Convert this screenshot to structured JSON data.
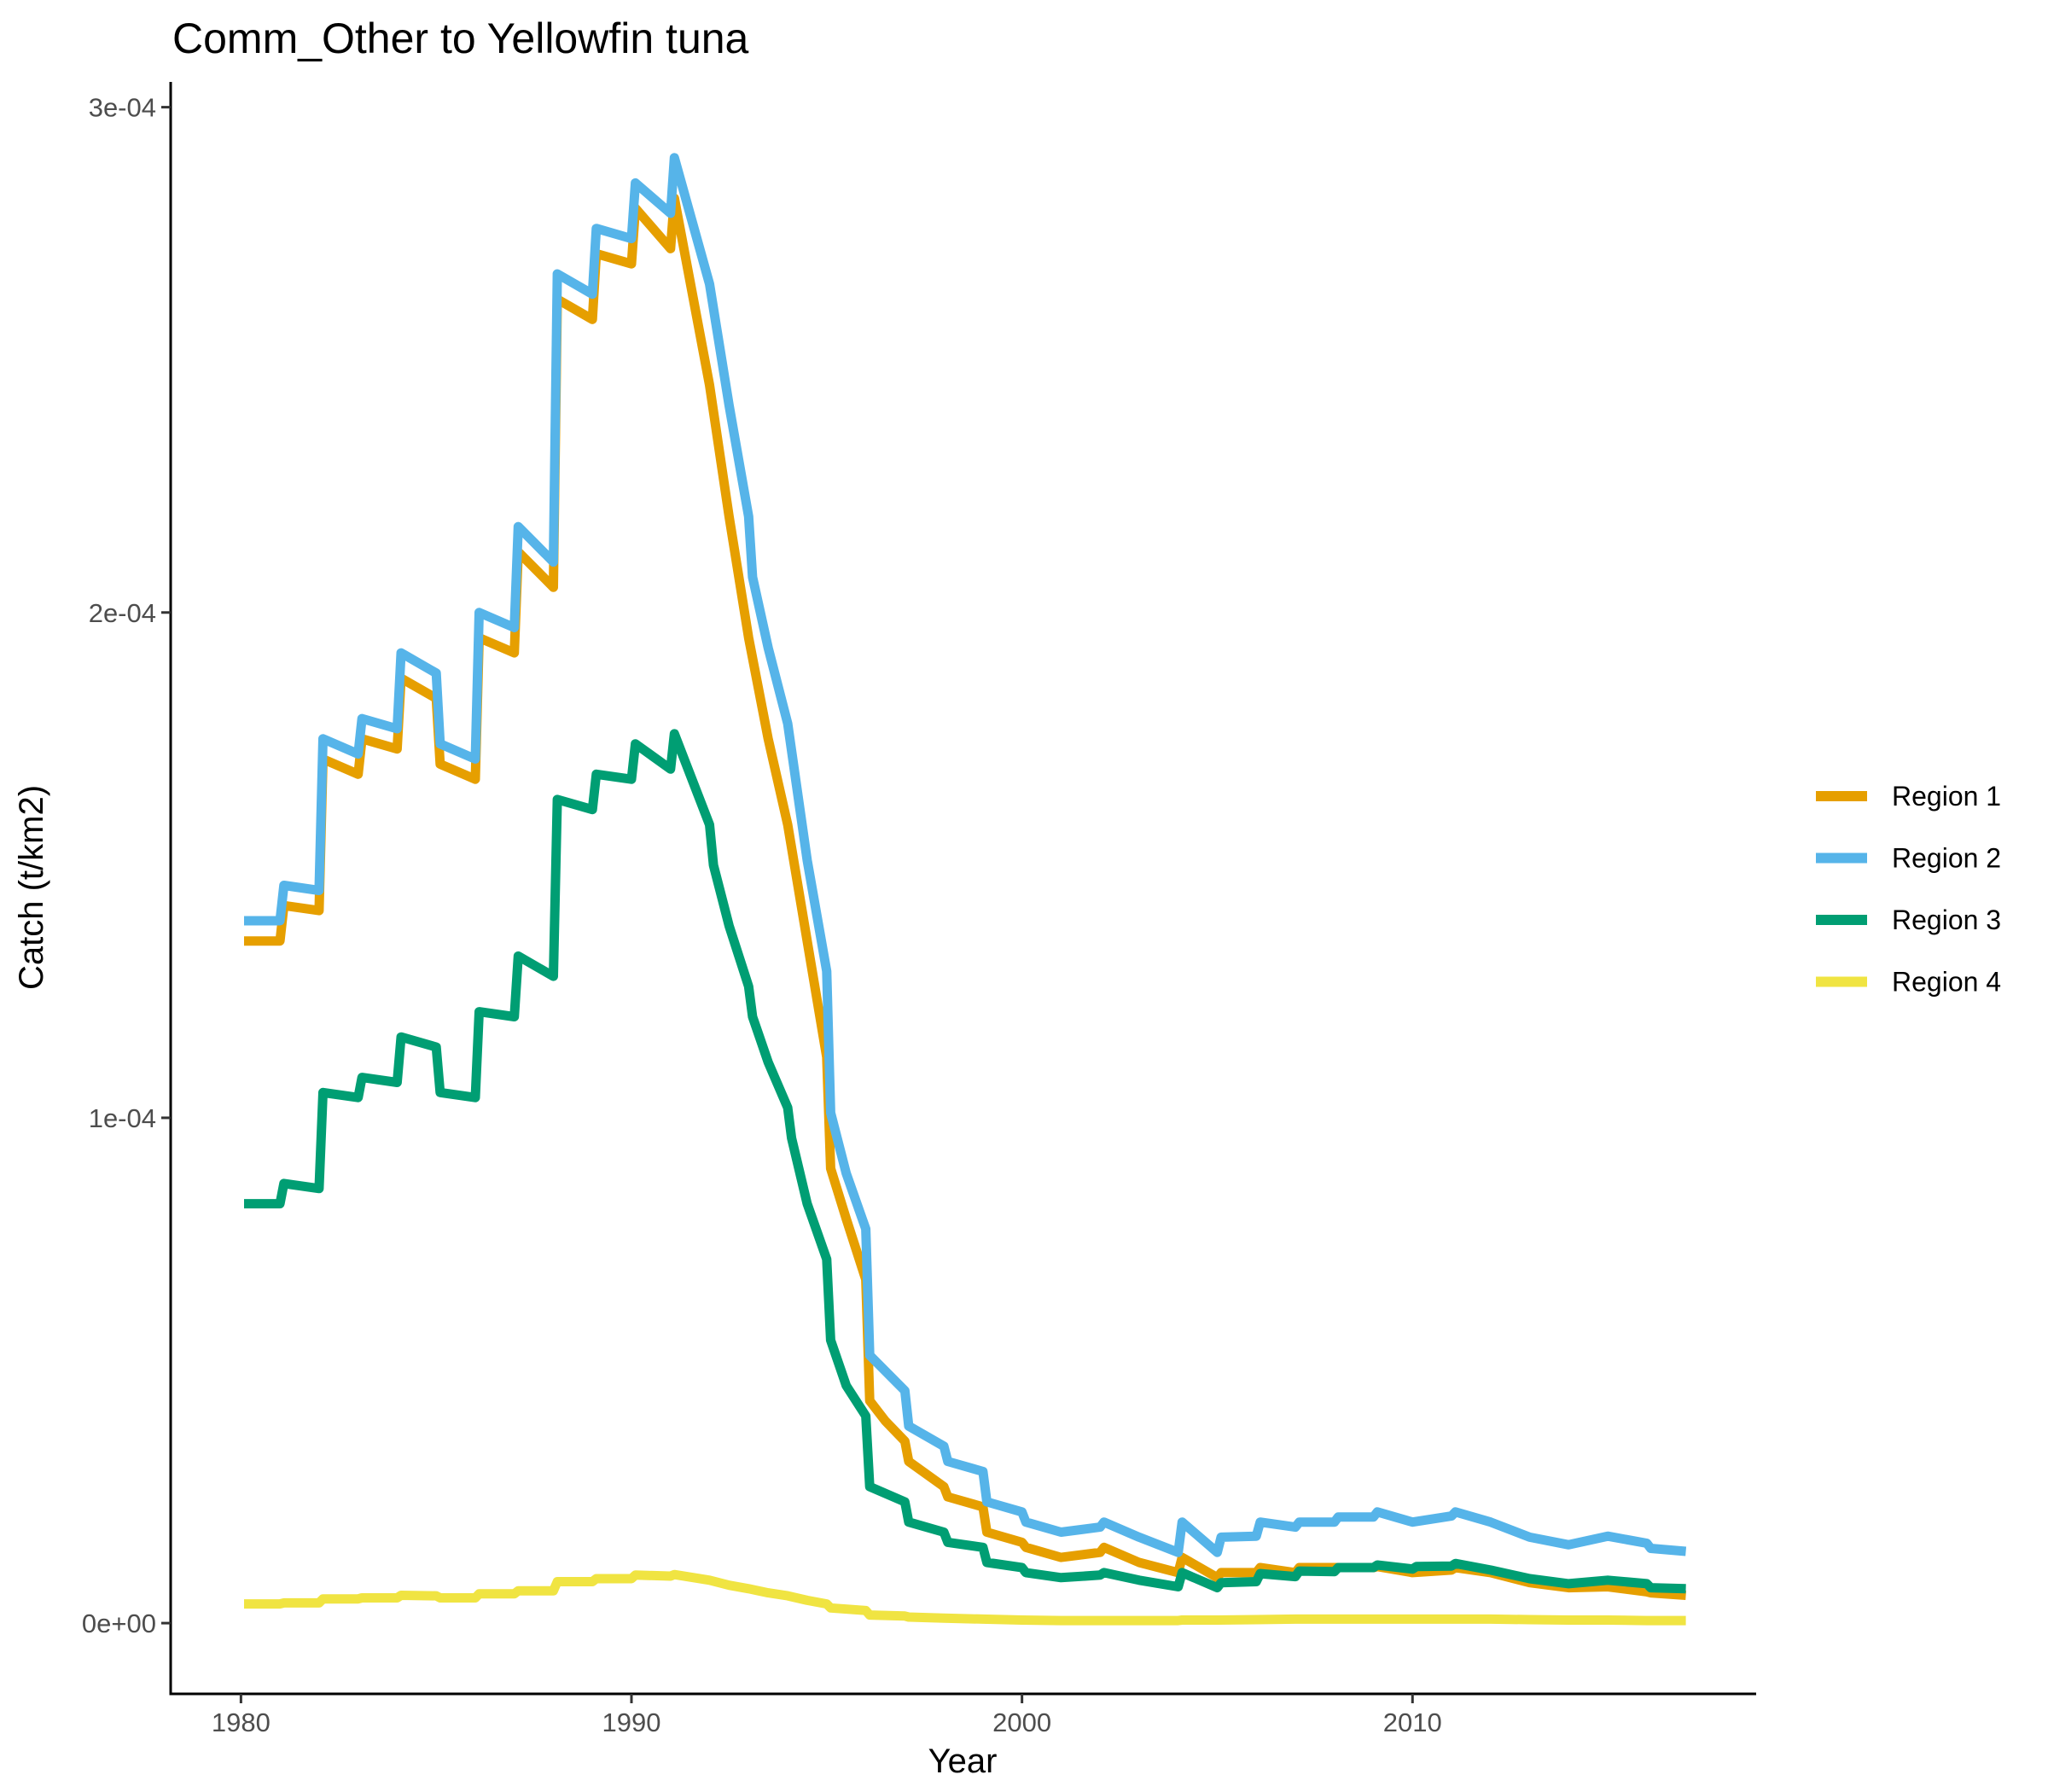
{
  "chart_data": {
    "type": "line",
    "title": "Comm_Other to Yellowfin tuna",
    "xlabel": "Year",
    "ylabel": "Catch (t/km2)",
    "xlim": [
      1978.2,
      2018.8
    ],
    "ylim": [
      -1.4e-05,
      0.000305
    ],
    "x_ticks": [
      {
        "value": 1980,
        "label": "1980"
      },
      {
        "value": 1990,
        "label": "1990"
      },
      {
        "value": 2000,
        "label": "2000"
      },
      {
        "value": 2010,
        "label": "2010"
      }
    ],
    "y_ticks": [
      {
        "value": 0,
        "label": "0e+00"
      },
      {
        "value": 0.0001,
        "label": "1e-04"
      },
      {
        "value": 0.0002,
        "label": "2e-04"
      },
      {
        "value": 0.0003,
        "label": "3e-04"
      }
    ],
    "grid": false,
    "legend_position": "right",
    "series": [
      {
        "name": "Region 1",
        "color": "#E69F00",
        "points": [
          [
            1980.08,
            0.000135
          ],
          [
            1981,
            0.000135
          ],
          [
            1981.1,
            0.000142
          ],
          [
            1982,
            0.000141
          ],
          [
            1982.1,
            0.000171
          ],
          [
            1983,
            0.000168
          ],
          [
            1983.1,
            0.000175
          ],
          [
            1984,
            0.000173
          ],
          [
            1984.1,
            0.000187
          ],
          [
            1985,
            0.000183
          ],
          [
            1985.1,
            0.00017
          ],
          [
            1986,
            0.000167
          ],
          [
            1986.1,
            0.000195
          ],
          [
            1987,
            0.000192
          ],
          [
            1987.1,
            0.000212
          ],
          [
            1988,
            0.000205
          ],
          [
            1988.1,
            0.000262
          ],
          [
            1989,
            0.000258
          ],
          [
            1989.1,
            0.000271
          ],
          [
            1990,
            0.000269
          ],
          [
            1990.1,
            0.00028
          ],
          [
            1991,
            0.000272
          ],
          [
            1991.1,
            0.000282
          ],
          [
            1992,
            0.000245
          ],
          [
            1992.5,
            0.000219
          ],
          [
            1993,
            0.000195
          ],
          [
            1993.5,
            0.000175
          ],
          [
            1994,
            0.000158
          ],
          [
            1994.5,
            0.000135
          ],
          [
            1995,
            0.000112
          ],
          [
            1995.1,
            9e-05
          ],
          [
            1995.5,
            8e-05
          ],
          [
            1996,
            6.8e-05
          ],
          [
            1996.1,
            4.4e-05
          ],
          [
            1996.5,
            4e-05
          ],
          [
            1997,
            3.6e-05
          ],
          [
            1997.1,
            3.2e-05
          ],
          [
            1998,
            2.7e-05
          ],
          [
            1998.1,
            2.5e-05
          ],
          [
            1999,
            2.3e-05
          ],
          [
            1999.1,
            1.8e-05
          ],
          [
            2000,
            1.6e-05
          ],
          [
            2000.1,
            1.5e-05
          ],
          [
            2001,
            1.3e-05
          ],
          [
            2002,
            1.4e-05
          ],
          [
            2002.1,
            1.5e-05
          ],
          [
            2003,
            1.2e-05
          ],
          [
            2004,
            1e-05
          ],
          [
            2004.1,
            1.3e-05
          ],
          [
            2005,
            9e-06
          ],
          [
            2005.1,
            1e-05
          ],
          [
            2006,
            1e-05
          ],
          [
            2006.1,
            1.1e-05
          ],
          [
            2007,
            1e-05
          ],
          [
            2007.1,
            1.1e-05
          ],
          [
            2008,
            1.1e-05
          ],
          [
            2009,
            1.1e-05
          ],
          [
            2009.1,
            1.12e-05
          ],
          [
            2010,
            1e-05
          ],
          [
            2011,
            1.05e-05
          ],
          [
            2011.1,
            1.1e-05
          ],
          [
            2012,
            1e-05
          ],
          [
            2013,
            8e-06
          ],
          [
            2014,
            7e-06
          ],
          [
            2015,
            7.2e-06
          ],
          [
            2016,
            6.2e-06
          ],
          [
            2016.1,
            6e-06
          ],
          [
            2017,
            5.5e-06
          ]
        ]
      },
      {
        "name": "Region 2",
        "color": "#56B4E9",
        "points": [
          [
            1980.08,
            0.000139
          ],
          [
            1981,
            0.000139
          ],
          [
            1981.1,
            0.000146
          ],
          [
            1982,
            0.000145
          ],
          [
            1982.1,
            0.000175
          ],
          [
            1983,
            0.000172
          ],
          [
            1983.1,
            0.000179
          ],
          [
            1984,
            0.000177
          ],
          [
            1984.1,
            0.000192
          ],
          [
            1985,
            0.000188
          ],
          [
            1985.1,
            0.000174
          ],
          [
            1986,
            0.000171
          ],
          [
            1986.1,
            0.0002
          ],
          [
            1987,
            0.000197
          ],
          [
            1987.1,
            0.000217
          ],
          [
            1988,
            0.00021
          ],
          [
            1988.1,
            0.000267
          ],
          [
            1989,
            0.000263
          ],
          [
            1989.1,
            0.000276
          ],
          [
            1990,
            0.000274
          ],
          [
            1990.1,
            0.000285
          ],
          [
            1991,
            0.000279
          ],
          [
            1991.1,
            0.00029
          ],
          [
            1992,
            0.000265
          ],
          [
            1992.5,
            0.000241
          ],
          [
            1993,
            0.000219
          ],
          [
            1993.1,
            0.000207
          ],
          [
            1993.5,
            0.000193
          ],
          [
            1994,
            0.000178
          ],
          [
            1994.5,
            0.000151
          ],
          [
            1995,
            0.000129
          ],
          [
            1995.1,
            0.000101
          ],
          [
            1995.5,
            8.9e-05
          ],
          [
            1996,
            7.8e-05
          ],
          [
            1996.1,
            5.3e-05
          ],
          [
            1997,
            4.6e-05
          ],
          [
            1997.1,
            3.9e-05
          ],
          [
            1998,
            3.5e-05
          ],
          [
            1998.1,
            3.2e-05
          ],
          [
            1999,
            3e-05
          ],
          [
            1999.1,
            2.4e-05
          ],
          [
            2000,
            2.2e-05
          ],
          [
            2000.1,
            2e-05
          ],
          [
            2001,
            1.8e-05
          ],
          [
            2002,
            1.9e-05
          ],
          [
            2002.1,
            2e-05
          ],
          [
            2003,
            1.7e-05
          ],
          [
            2004,
            1.4e-05
          ],
          [
            2004.1,
            2e-05
          ],
          [
            2005,
            1.4e-05
          ],
          [
            2005.1,
            1.7e-05
          ],
          [
            2006,
            1.72e-05
          ],
          [
            2006.1,
            2e-05
          ],
          [
            2007,
            1.9e-05
          ],
          [
            2007.1,
            2e-05
          ],
          [
            2008,
            2e-05
          ],
          [
            2008.1,
            2.1e-05
          ],
          [
            2009,
            2.1e-05
          ],
          [
            2009.1,
            2.2e-05
          ],
          [
            2010,
            2e-05
          ],
          [
            2011,
            2.12e-05
          ],
          [
            2011.1,
            2.2e-05
          ],
          [
            2012,
            2e-05
          ],
          [
            2013,
            1.7e-05
          ],
          [
            2014,
            1.55e-05
          ],
          [
            2015,
            1.72e-05
          ],
          [
            2016,
            1.58e-05
          ],
          [
            2016.1,
            1.48e-05
          ],
          [
            2017,
            1.42e-05
          ]
        ]
      },
      {
        "name": "Region 3",
        "color": "#009E73",
        "points": [
          [
            1980.08,
            8.3e-05
          ],
          [
            1981,
            8.3e-05
          ],
          [
            1981.1,
            8.7e-05
          ],
          [
            1982,
            8.6e-05
          ],
          [
            1982.1,
            0.000105
          ],
          [
            1983,
            0.000104
          ],
          [
            1983.1,
            0.000108
          ],
          [
            1984,
            0.000107
          ],
          [
            1984.1,
            0.000116
          ],
          [
            1985,
            0.000114
          ],
          [
            1985.1,
            0.000105
          ],
          [
            1986,
            0.000104
          ],
          [
            1986.1,
            0.000121
          ],
          [
            1987,
            0.00012
          ],
          [
            1987.1,
            0.000132
          ],
          [
            1988,
            0.000128
          ],
          [
            1988.1,
            0.000163
          ],
          [
            1989,
            0.000161
          ],
          [
            1989.1,
            0.000168
          ],
          [
            1990,
            0.000167
          ],
          [
            1990.1,
            0.000174
          ],
          [
            1991,
            0.000169
          ],
          [
            1991.1,
            0.000176
          ],
          [
            1992,
            0.000158
          ],
          [
            1992.1,
            0.00015
          ],
          [
            1992.5,
            0.000138
          ],
          [
            1993,
            0.000126
          ],
          [
            1993.1,
            0.00012
          ],
          [
            1993.5,
            0.000111
          ],
          [
            1994,
            0.000102
          ],
          [
            1994.1,
            9.6e-05
          ],
          [
            1994.5,
            8.3e-05
          ],
          [
            1995,
            7.2e-05
          ],
          [
            1995.1,
            5.6e-05
          ],
          [
            1995.5,
            4.7e-05
          ],
          [
            1996,
            4.1e-05
          ],
          [
            1996.1,
            2.7e-05
          ],
          [
            1997,
            2.4e-05
          ],
          [
            1997.1,
            2e-05
          ],
          [
            1998,
            1.8e-05
          ],
          [
            1998.1,
            1.6e-05
          ],
          [
            1999,
            1.5e-05
          ],
          [
            1999.1,
            1.2e-05
          ],
          [
            2000,
            1.1e-05
          ],
          [
            2000.1,
            1e-05
          ],
          [
            2001,
            9e-06
          ],
          [
            2002,
            9.5e-06
          ],
          [
            2002.1,
            1e-05
          ],
          [
            2003,
            8.5e-06
          ],
          [
            2004,
            7.2e-06
          ],
          [
            2004.1,
            1e-05
          ],
          [
            2005,
            7e-06
          ],
          [
            2005.1,
            8e-06
          ],
          [
            2006,
            8.2e-06
          ],
          [
            2006.1,
            9.8e-06
          ],
          [
            2007,
            9.2e-06
          ],
          [
            2007.1,
            1.03e-05
          ],
          [
            2008,
            1.02e-05
          ],
          [
            2008.1,
            1.1e-05
          ],
          [
            2009,
            1.1e-05
          ],
          [
            2009.1,
            1.15e-05
          ],
          [
            2010,
            1.07e-05
          ],
          [
            2010.1,
            1.12e-05
          ],
          [
            2011,
            1.13e-05
          ],
          [
            2011.1,
            1.18e-05
          ],
          [
            2012,
            1.05e-05
          ],
          [
            2013,
            8.8e-06
          ],
          [
            2014,
            7.8e-06
          ],
          [
            2015,
            8.5e-06
          ],
          [
            2016,
            7.8e-06
          ],
          [
            2016.1,
            7e-06
          ],
          [
            2017,
            6.8e-06
          ]
        ]
      },
      {
        "name": "Region 4",
        "color": "#F0E442",
        "points": [
          [
            1980.08,
            3.8e-06
          ],
          [
            1981,
            3.8e-06
          ],
          [
            1981.1,
            4e-06
          ],
          [
            1982,
            4e-06
          ],
          [
            1982.1,
            4.8e-06
          ],
          [
            1983,
            4.8e-06
          ],
          [
            1983.1,
            5e-06
          ],
          [
            1984,
            5e-06
          ],
          [
            1984.1,
            5.5e-06
          ],
          [
            1985,
            5.4e-06
          ],
          [
            1985.1,
            5e-06
          ],
          [
            1986,
            5e-06
          ],
          [
            1986.1,
            5.8e-06
          ],
          [
            1987,
            5.8e-06
          ],
          [
            1987.1,
            6.4e-06
          ],
          [
            1988,
            6.4e-06
          ],
          [
            1988.1,
            8.2e-06
          ],
          [
            1989,
            8.2e-06
          ],
          [
            1989.1,
            8.8e-06
          ],
          [
            1990,
            8.8e-06
          ],
          [
            1990.1,
            9.5e-06
          ],
          [
            1991,
            9.3e-06
          ],
          [
            1991.1,
            9.6e-06
          ],
          [
            1992,
            8.5e-06
          ],
          [
            1992.5,
            7.5e-06
          ],
          [
            1993,
            6.8e-06
          ],
          [
            1993.5,
            6e-06
          ],
          [
            1994,
            5.4e-06
          ],
          [
            1994.5,
            4.5e-06
          ],
          [
            1995,
            3.8e-06
          ],
          [
            1995.1,
            3e-06
          ],
          [
            1996,
            2.5e-06
          ],
          [
            1996.1,
            1.6e-06
          ],
          [
            1997,
            1.4e-06
          ],
          [
            1997.1,
            1.2e-06
          ],
          [
            1998,
            1e-06
          ],
          [
            1999,
            8e-07
          ],
          [
            2000,
            6e-07
          ],
          [
            2001,
            5e-07
          ],
          [
            2002,
            5e-07
          ],
          [
            2003,
            5e-07
          ],
          [
            2004,
            5e-07
          ],
          [
            2004.1,
            6e-07
          ],
          [
            2005,
            6e-07
          ],
          [
            2006,
            7e-07
          ],
          [
            2007,
            8e-07
          ],
          [
            2008,
            8e-07
          ],
          [
            2009,
            8e-07
          ],
          [
            2010,
            8e-07
          ],
          [
            2011,
            8e-07
          ],
          [
            2012,
            8e-07
          ],
          [
            2013,
            7e-07
          ],
          [
            2014,
            6e-07
          ],
          [
            2015,
            6e-07
          ],
          [
            2016,
            5e-07
          ],
          [
            2017,
            5e-07
          ]
        ]
      }
    ]
  }
}
